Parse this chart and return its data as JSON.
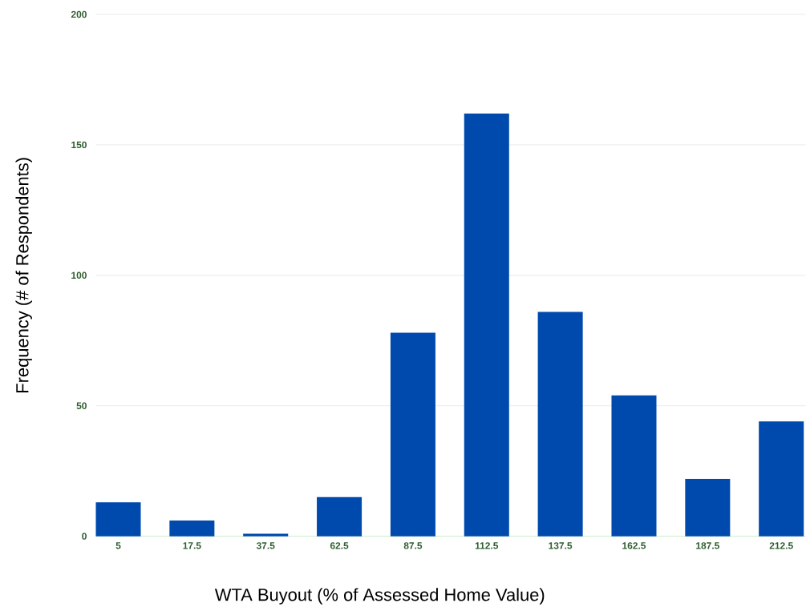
{
  "chart_data": {
    "type": "bar",
    "xlabel": "WTA Buyout (% of Assessed Home Value)",
    "ylabel": "Frequency (# of Respondents)",
    "categories": [
      "5",
      "17.5",
      "37.5",
      "62.5",
      "87.5",
      "112.5",
      "137.5",
      "162.5",
      "187.5",
      "212.5"
    ],
    "values": [
      13,
      6,
      1,
      15,
      78,
      162,
      86,
      54,
      22,
      44
    ],
    "color": "#004aad",
    "ylim": [
      0,
      200
    ],
    "yticks": [
      0,
      50,
      100,
      150,
      200
    ],
    "grid": "y"
  }
}
